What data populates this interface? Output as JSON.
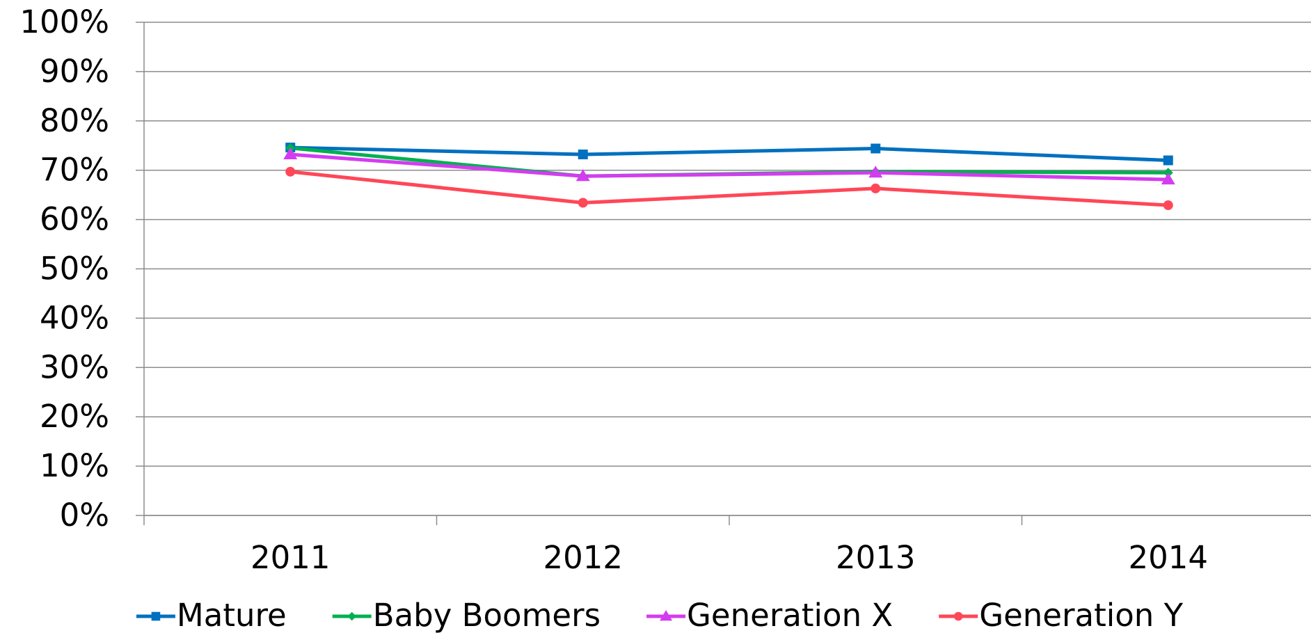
{
  "chart_data": {
    "type": "line",
    "categories": [
      "2011",
      "2012",
      "2013",
      "2014"
    ],
    "series": [
      {
        "name": "Mature",
        "color": "#0070c0",
        "marker": "square",
        "values": [
          74.6,
          73.2,
          74.4,
          72.0
        ]
      },
      {
        "name": "Baby Boomers",
        "color": "#00b050",
        "marker": "diamond",
        "values": [
          74.5,
          68.8,
          69.7,
          69.5
        ]
      },
      {
        "name": "Generation X",
        "color": "#d43cf0",
        "marker": "triangle",
        "values": [
          73.2,
          68.8,
          69.5,
          68.1
        ]
      },
      {
        "name": "Generation Y",
        "color": "#ff4757",
        "marker": "circle",
        "values": [
          69.7,
          63.4,
          66.3,
          62.9
        ]
      }
    ],
    "ylim": [
      0,
      100
    ],
    "yticks": [
      {
        "value": 0,
        "label": "0%"
      },
      {
        "value": 10,
        "label": "10%"
      },
      {
        "value": 20,
        "label": "20%"
      },
      {
        "value": 30,
        "label": "30%"
      },
      {
        "value": 40,
        "label": "40%"
      },
      {
        "value": 50,
        "label": "50%"
      },
      {
        "value": 60,
        "label": "60%"
      },
      {
        "value": 70,
        "label": "70%"
      },
      {
        "value": 80,
        "label": "80%"
      },
      {
        "value": 90,
        "label": "90%"
      },
      {
        "value": 100,
        "label": "100%"
      }
    ],
    "grid": true,
    "legend": "bottom"
  }
}
